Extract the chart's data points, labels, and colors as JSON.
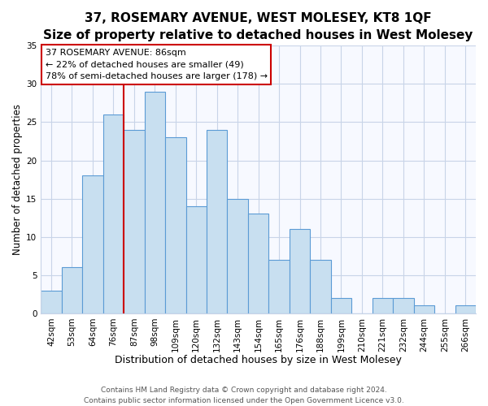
{
  "title": "37, ROSEMARY AVENUE, WEST MOLESEY, KT8 1QF",
  "subtitle": "Size of property relative to detached houses in West Molesey",
  "xlabel": "Distribution of detached houses by size in West Molesey",
  "ylabel": "Number of detached properties",
  "bar_color": "#c8dff0",
  "bar_edge_color": "#5b9bd5",
  "categories": [
    "42sqm",
    "53sqm",
    "64sqm",
    "76sqm",
    "87sqm",
    "98sqm",
    "109sqm",
    "120sqm",
    "132sqm",
    "143sqm",
    "154sqm",
    "165sqm",
    "176sqm",
    "188sqm",
    "199sqm",
    "210sqm",
    "221sqm",
    "232sqm",
    "244sqm",
    "255sqm",
    "266sqm"
  ],
  "values": [
    3,
    6,
    18,
    26,
    24,
    29,
    23,
    14,
    24,
    15,
    13,
    7,
    11,
    7,
    2,
    0,
    2,
    2,
    1,
    0,
    1
  ],
  "vline_color": "#cc0000",
  "vline_index": 4,
  "annotation_title": "37 ROSEMARY AVENUE: 86sqm",
  "annotation_line1": "← 22% of detached houses are smaller (49)",
  "annotation_line2": "78% of semi-detached houses are larger (178) →",
  "annotation_box_color": "#ffffff",
  "annotation_box_edge": "#cc0000",
  "footer1": "Contains HM Land Registry data © Crown copyright and database right 2024.",
  "footer2": "Contains public sector information licensed under the Open Government Licence v3.0.",
  "ylim": [
    0,
    35
  ],
  "yticks": [
    0,
    5,
    10,
    15,
    20,
    25,
    30,
    35
  ],
  "title_fontsize": 11,
  "subtitle_fontsize": 9.5,
  "xlabel_fontsize": 9,
  "ylabel_fontsize": 8.5,
  "tick_fontsize": 7.5,
  "annotation_fontsize": 8,
  "footer_fontsize": 6.5,
  "background_color": "#ffffff",
  "plot_bg_color": "#f7f9ff",
  "grid_color": "#c8d4e8"
}
